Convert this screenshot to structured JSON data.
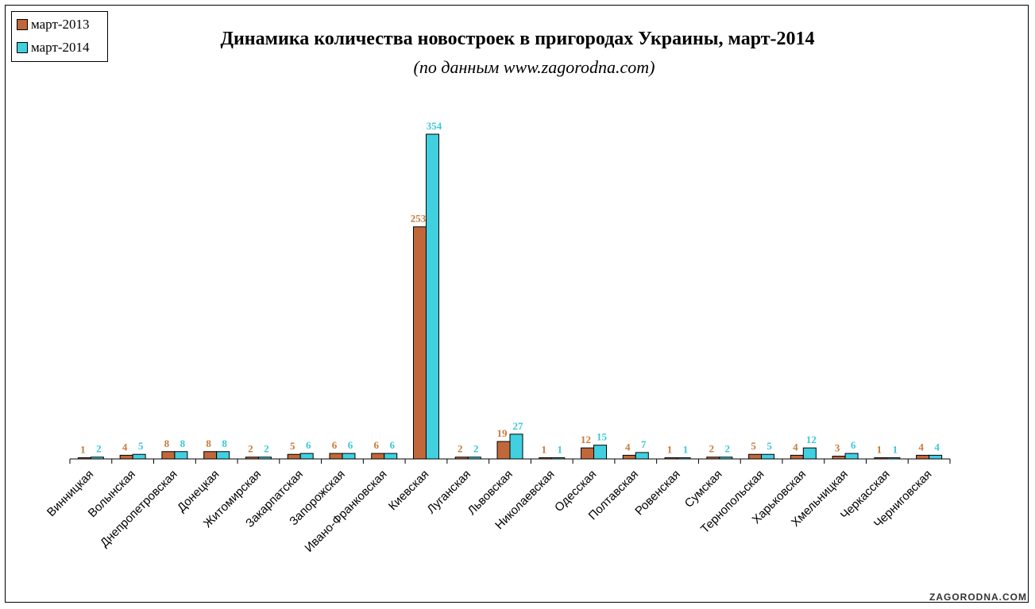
{
  "chart_data": {
    "type": "bar",
    "title": "Динамика количества новостроек в пригородах Украины, март-2014",
    "subtitle": "(по данным www.zagorodna.com)",
    "categories": [
      "Винницкая",
      "Волынская",
      "Днепропетровская",
      "Донецкая",
      "Житомирская",
      "Закарпатская",
      "Запорожская",
      "Ивано-Франковская",
      "Киевская",
      "Луганская",
      "Львовская",
      "Николаевская",
      "Одесская",
      "Полтавская",
      "Ровенская",
      "Сумская",
      "Тернопольская",
      "Харьковская",
      "Хмельницкая",
      "Черкасская",
      "Черниговская"
    ],
    "series": [
      {
        "name": "март-2013",
        "color": "#c0683a",
        "label_color": "#c87a3a",
        "values": [
          1,
          4,
          8,
          8,
          2,
          5,
          6,
          6,
          253,
          2,
          19,
          1,
          12,
          4,
          1,
          2,
          5,
          4,
          3,
          1,
          4
        ]
      },
      {
        "name": "март-2014",
        "color": "#40d0e0",
        "label_color": "#3cc8d8",
        "values": [
          2,
          5,
          8,
          8,
          2,
          6,
          6,
          6,
          354,
          2,
          27,
          1,
          15,
          7,
          1,
          2,
          5,
          12,
          6,
          1,
          4
        ]
      }
    ],
    "ylim": [
      0,
      354
    ],
    "grid": false,
    "legend": "top-left",
    "data_labels": true
  },
  "watermark": "ZAGORODNA.COM"
}
